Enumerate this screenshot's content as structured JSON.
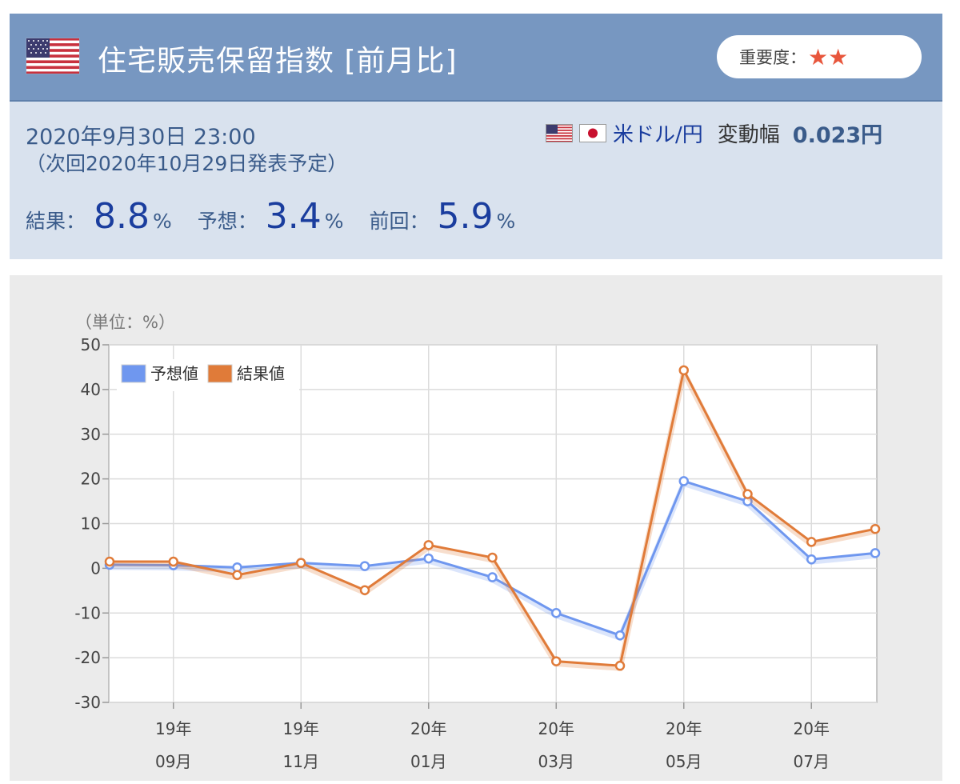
{
  "header": {
    "title": "住宅販売保留指数 [前月比]",
    "importance_label": "重要度：",
    "importance_stars": "★★"
  },
  "info": {
    "datetime": "2020年9月30日 23:00",
    "next_release": "（次回2020年10月29日発表予定）",
    "pair_name": "米ドル/円",
    "volatility_label": "変動幅",
    "volatility_value": "0.023円",
    "result_label": "結果：",
    "result_value": "8.8",
    "forecast_label": "予想：",
    "forecast_value": "3.4",
    "previous_label": "前回：",
    "previous_value": "5.9",
    "unit": "%"
  },
  "colors": {
    "header_bg": "#7797c1",
    "info_bg": "#d9e2ee",
    "forecast_line": "#6f97ef",
    "result_line": "#e07b39",
    "accent_text": "#1a3d9e"
  },
  "chart_data": {
    "type": "line",
    "unit_label": "（単位：%）",
    "ylim": [
      -30,
      50
    ],
    "yticks": [
      50,
      40,
      30,
      20,
      10,
      0,
      -10,
      -20,
      -30
    ],
    "grid": true,
    "legend_position": "top-left",
    "x_count": 13,
    "x_labels": [
      {
        "index": 1,
        "year": "19年",
        "month": "09月"
      },
      {
        "index": 3,
        "year": "19年",
        "month": "11月"
      },
      {
        "index": 5,
        "year": "20年",
        "month": "01月"
      },
      {
        "index": 7,
        "year": "20年",
        "month": "03月"
      },
      {
        "index": 9,
        "year": "20年",
        "month": "05月"
      },
      {
        "index": 11,
        "year": "20年",
        "month": "07月"
      }
    ],
    "series": [
      {
        "name": "予想値",
        "color": "#6f97ef",
        "values": [
          0.8,
          0.7,
          0.2,
          1.2,
          0.5,
          2.2,
          -2.0,
          -10.0,
          -15.0,
          19.5,
          15.0,
          2.0,
          3.4
        ]
      },
      {
        "name": "結果値",
        "color": "#e07b39",
        "values": [
          1.5,
          1.5,
          -1.5,
          1.2,
          -4.9,
          5.2,
          2.4,
          -20.8,
          -21.8,
          44.3,
          16.6,
          5.9,
          8.8
        ]
      }
    ]
  }
}
